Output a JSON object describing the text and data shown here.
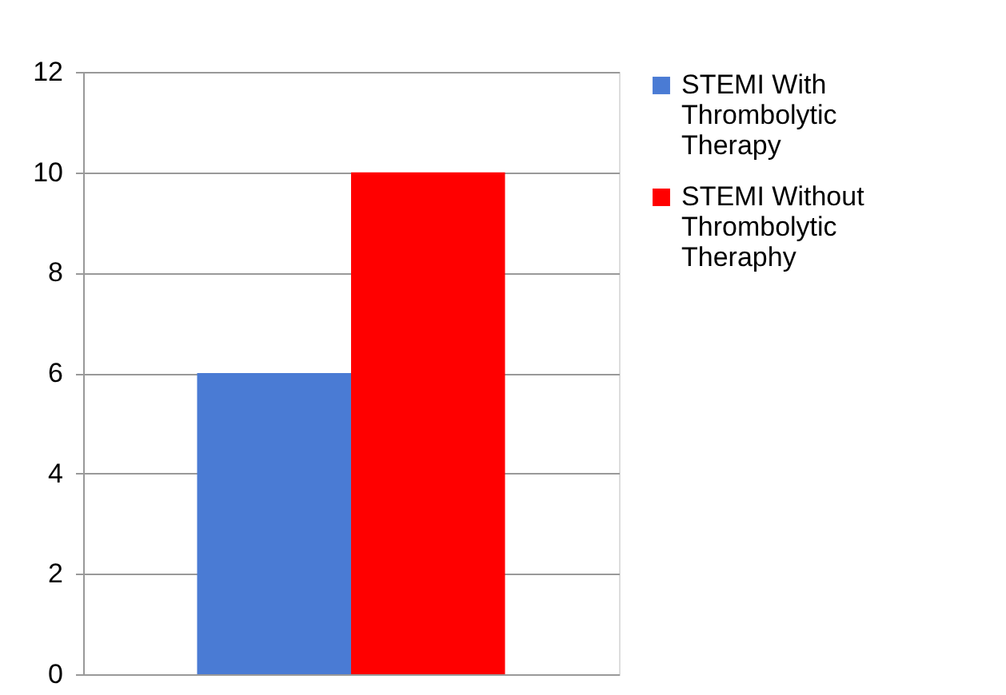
{
  "chart_data": {
    "type": "bar",
    "categories": [
      null
    ],
    "series": [
      {
        "name": "STEMI With Thrombolytic Therapy",
        "color": "#4a7bd4",
        "values": [
          6
        ]
      },
      {
        "name": "STEMI Without Thrombolytic Theraphy",
        "color": "#ff0000",
        "values": [
          10
        ]
      }
    ],
    "ylim": [
      0,
      12
    ],
    "yticks": [
      0,
      2,
      4,
      6,
      8,
      10,
      12
    ],
    "grid": "y",
    "legend": "right"
  }
}
